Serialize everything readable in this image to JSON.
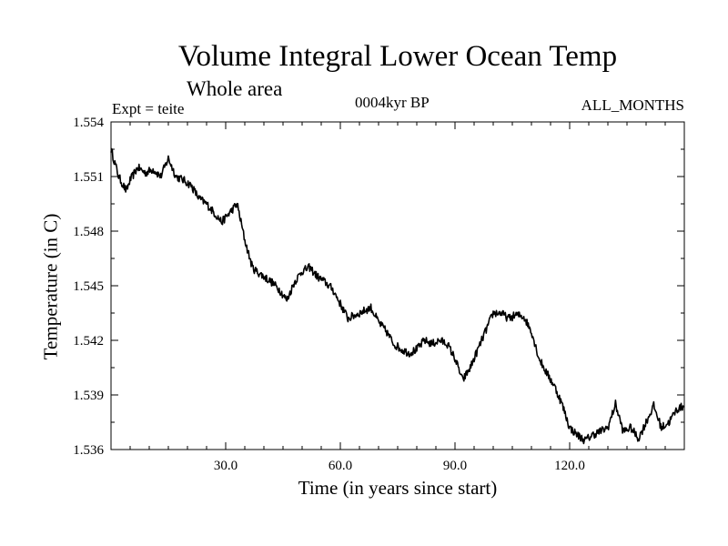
{
  "chart_data": {
    "type": "line",
    "title": "Volume Integral Lower Ocean Temp",
    "subtitle": "Whole area",
    "annotation_left": "Expt = teite",
    "annotation_center": "0004kyr BP",
    "annotation_right": "ALL_MONTHS",
    "xlabel": "Time (in years since start)",
    "ylabel": "Temperature (in C)",
    "xlim": [
      0,
      150
    ],
    "ylim": [
      1.536,
      1.554
    ],
    "xticks": [
      30,
      60,
      90,
      120
    ],
    "xtick_labels": [
      "30.0",
      "60.0",
      "90.0",
      "120.0"
    ],
    "yticks": [
      1.536,
      1.539,
      1.542,
      1.545,
      1.548,
      1.551,
      1.554
    ],
    "ytick_labels": [
      "1.536",
      "1.539",
      "1.542",
      "1.545",
      "1.548",
      "1.551",
      "1.554"
    ],
    "grid": false,
    "series": [
      {
        "name": "Volume Integral Lower Ocean Temp",
        "x": [
          0,
          2,
          4,
          5,
          7,
          9,
          11,
          13,
          15,
          17,
          19,
          21,
          23,
          25,
          27,
          29,
          31,
          33,
          35,
          37,
          38,
          40,
          42,
          44,
          46,
          48,
          50,
          52,
          54,
          56,
          58,
          60,
          62,
          65,
          68,
          70,
          72,
          74,
          76,
          78,
          80,
          82,
          84,
          86,
          88,
          90,
          92,
          94,
          96,
          98,
          100,
          102,
          104,
          106,
          108,
          110,
          112,
          114,
          116,
          118,
          120,
          122,
          124,
          126,
          128,
          130,
          132,
          134,
          136,
          138,
          140,
          142,
          144,
          146,
          148,
          150
        ],
        "y": [
          1.5525,
          1.551,
          1.5502,
          1.5508,
          1.5515,
          1.5512,
          1.5514,
          1.551,
          1.552,
          1.551,
          1.5508,
          1.5505,
          1.5498,
          1.5495,
          1.549,
          1.5485,
          1.549,
          1.5495,
          1.5475,
          1.546,
          1.5458,
          1.5455,
          1.5452,
          1.5448,
          1.5442,
          1.5452,
          1.5458,
          1.546,
          1.5455,
          1.5452,
          1.5448,
          1.544,
          1.5432,
          1.5435,
          1.5438,
          1.543,
          1.5425,
          1.5418,
          1.5415,
          1.5413,
          1.5415,
          1.542,
          1.5418,
          1.542,
          1.5418,
          1.541,
          1.5398,
          1.5405,
          1.5415,
          1.5425,
          1.5435,
          1.5435,
          1.5432,
          1.5434,
          1.5433,
          1.5425,
          1.541,
          1.5402,
          1.5395,
          1.5385,
          1.5372,
          1.5368,
          1.5365,
          1.5368,
          1.537,
          1.5372,
          1.5385,
          1.537,
          1.5372,
          1.5366,
          1.5375,
          1.5384,
          1.5372,
          1.5375,
          1.5382,
          1.5384
        ]
      }
    ]
  }
}
